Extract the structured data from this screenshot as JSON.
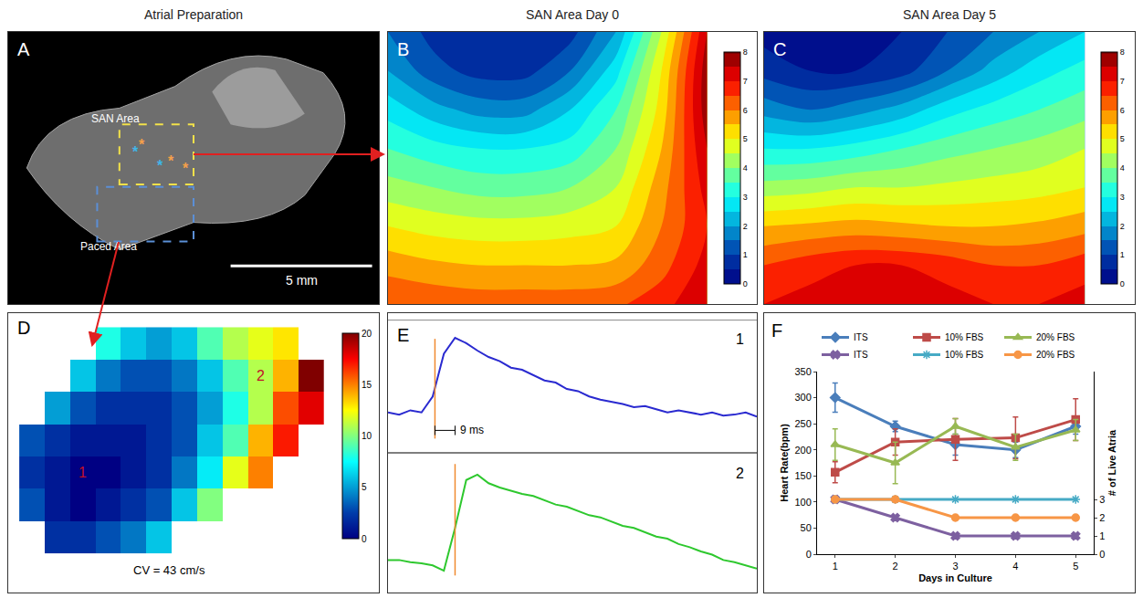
{
  "column_titles": [
    "Atrial Preparation",
    "SAN Area Day 0",
    "SAN Area Day 5"
  ],
  "chart_data": [
    {
      "type": "image",
      "panel": "A",
      "labels": {
        "san": "SAN Area",
        "paced": "Paced Area"
      },
      "asterisks": {
        "text": "*",
        "colors": [
          "#3fb6e8",
          "#f5a04a",
          "#3fb6e8",
          "#f5a04a",
          "#f5a04a"
        ]
      },
      "scale_bar": {
        "label": "5 mm",
        "length": 5
      },
      "xlim": [
        0,
        13.1
      ],
      "ylim": [
        0,
        9.9
      ],
      "tick_labels": false
    },
    {
      "type": "contour",
      "panel": "B",
      "z": [
        [
          1.5,
          0.8,
          0.5,
          0.5,
          0.8,
          2.0,
          4.5,
          7.5
        ],
        [
          2.0,
          1.2,
          0.8,
          0.8,
          1.5,
          2.8,
          5.0,
          7.8
        ],
        [
          2.8,
          2.2,
          1.8,
          1.8,
          2.5,
          3.5,
          5.2,
          7.8
        ],
        [
          3.5,
          3.2,
          3.0,
          3.0,
          3.2,
          4.0,
          5.5,
          7.5
        ],
        [
          4.2,
          4.0,
          3.8,
          3.8,
          4.0,
          4.5,
          5.8,
          7.2
        ],
        [
          5.0,
          4.8,
          4.7,
          4.7,
          4.8,
          5.0,
          6.0,
          7.0
        ],
        [
          5.8,
          5.6,
          5.5,
          5.5,
          5.5,
          5.6,
          6.3,
          7.2
        ],
        [
          6.5,
          6.4,
          6.3,
          6.3,
          6.3,
          6.4,
          6.8,
          7.5
        ]
      ],
      "zlim": [
        0,
        8
      ],
      "colorbar_ticks": [
        0,
        1,
        2,
        3,
        4,
        5,
        6,
        7,
        8
      ],
      "tick_labels": false
    },
    {
      "type": "contour",
      "panel": "C",
      "z": [
        [
          0.3,
          0.3,
          0.3,
          0.5,
          1.0,
          1.5,
          2.0,
          2.5
        ],
        [
          0.8,
          0.5,
          0.5,
          0.8,
          1.5,
          2.2,
          2.8,
          3.2
        ],
        [
          1.8,
          1.5,
          1.8,
          2.2,
          2.8,
          3.2,
          3.5,
          3.8
        ],
        [
          3.0,
          3.0,
          3.2,
          3.5,
          3.8,
          4.0,
          4.2,
          4.5
        ],
        [
          4.2,
          4.3,
          4.5,
          4.5,
          4.6,
          4.7,
          4.8,
          5.0
        ],
        [
          5.5,
          5.6,
          5.7,
          5.6,
          5.5,
          5.5,
          5.6,
          5.8
        ],
        [
          6.5,
          6.8,
          7.0,
          7.0,
          6.8,
          6.5,
          6.5,
          6.8
        ],
        [
          7.0,
          7.2,
          7.4,
          7.4,
          7.2,
          7.0,
          7.0,
          7.2
        ]
      ],
      "zlim": [
        0,
        8
      ],
      "colorbar_ticks": [
        0,
        1,
        2,
        3,
        4,
        5,
        6,
        7,
        8
      ],
      "tick_labels": false
    },
    {
      "type": "heatmap",
      "panel": "D",
      "z": [
        [
          null,
          null,
          null,
          8,
          6,
          5,
          6,
          9,
          11,
          12,
          13,
          null
        ],
        [
          null,
          null,
          6,
          4,
          3,
          3,
          4,
          6,
          9,
          11,
          14,
          20
        ],
        [
          null,
          5,
          3,
          2,
          2,
          2,
          3,
          5,
          8,
          11,
          16,
          18
        ],
        [
          3,
          2,
          1,
          1,
          1,
          2,
          3,
          6,
          9,
          14,
          17,
          null
        ],
        [
          2,
          1,
          0,
          0,
          1,
          2,
          4,
          7,
          12,
          15,
          null,
          null
        ],
        [
          3,
          1,
          0,
          1,
          2,
          3,
          6,
          10,
          null,
          null,
          null,
          null
        ],
        [
          null,
          2,
          2,
          3,
          4,
          6,
          null,
          null,
          null,
          null,
          null,
          null
        ]
      ],
      "zlim": [
        0,
        20
      ],
      "colorbar_ticks": [
        0,
        5,
        10,
        15,
        20
      ],
      "points": [
        {
          "label": "1",
          "x": 2,
          "y": 4
        },
        {
          "label": "2",
          "x": 9,
          "y": 1
        }
      ],
      "cv_label": "CV = 43 cm/s",
      "tick_labels": false
    },
    {
      "type": "line",
      "panel": "E",
      "x": [
        0,
        5,
        10,
        15,
        20,
        25,
        30,
        35,
        40,
        45,
        50,
        55,
        60,
        65,
        70,
        75,
        80,
        85,
        90,
        95,
        100,
        105,
        110,
        115,
        120,
        125,
        130,
        135,
        140,
        145,
        150,
        155,
        160,
        165
      ],
      "series": [
        {
          "name": "1",
          "color": "#2a2ad0",
          "values": [
            0.3,
            0.28,
            0.32,
            0.3,
            0.45,
            0.85,
            1.0,
            0.95,
            0.88,
            0.82,
            0.78,
            0.72,
            0.7,
            0.65,
            0.6,
            0.58,
            0.52,
            0.5,
            0.45,
            0.42,
            0.4,
            0.38,
            0.35,
            0.36,
            0.33,
            0.3,
            0.32,
            0.3,
            0.28,
            0.3,
            0.27,
            0.28,
            0.3,
            0.26
          ]
        },
        {
          "name": "2",
          "color": "#2ec82e",
          "values": [
            0.2,
            0.2,
            0.18,
            0.17,
            0.15,
            0.1,
            0.5,
            0.95,
            1.0,
            0.92,
            0.88,
            0.85,
            0.82,
            0.8,
            0.76,
            0.72,
            0.7,
            0.66,
            0.62,
            0.6,
            0.56,
            0.52,
            0.5,
            0.46,
            0.42,
            0.4,
            0.35,
            0.32,
            0.28,
            0.25,
            0.2,
            0.18,
            0.15,
            0.12
          ]
        }
      ],
      "activation": [
        21,
        30
      ],
      "activation_color": "#f08a30",
      "interval_label": "9 ms",
      "xlim": [
        0,
        165
      ],
      "ylim": [
        0,
        1.1
      ],
      "tick_labels": false
    },
    {
      "type": "line",
      "panel": "F",
      "x": [
        1,
        2,
        3,
        4,
        5
      ],
      "xlim": [
        0.7,
        5.3
      ],
      "xticks": [
        1,
        2,
        3,
        4,
        5
      ],
      "ylim": [
        0,
        350
      ],
      "yticks": [
        0,
        50,
        100,
        150,
        200,
        250,
        300,
        350
      ],
      "y2lim": [
        0,
        10
      ],
      "y2ticks": [
        0,
        1,
        2,
        3
      ],
      "x_label": "Days in Culture",
      "y_label": "Heart Rate(bpm)",
      "y2_label": "# of Live Atria",
      "legend": "top",
      "grid": false,
      "series": [
        {
          "name": "ITS",
          "color": "#4a7ebb",
          "marker": "diamond",
          "values": [
            300,
            245,
            210,
            200,
            245
          ],
          "errors": [
            28,
            10,
            20,
            15,
            15
          ]
        },
        {
          "name": "10% FBS",
          "color": "#be4b48",
          "marker": "square",
          "values": [
            157,
            215,
            220,
            223,
            258
          ],
          "errors": [
            20,
            25,
            40,
            40,
            40
          ]
        },
        {
          "name": "20% FBS",
          "color": "#98b954",
          "marker": "triangle-up",
          "values": [
            210,
            175,
            245,
            205,
            238
          ],
          "errors": [
            30,
            40,
            15,
            25,
            20
          ]
        },
        {
          "name": "ITS",
          "color": "#7d60a0",
          "marker": "x",
          "values": [
            3,
            2,
            1,
            1,
            1
          ],
          "axis": "y2"
        },
        {
          "name": "10% FBS",
          "color": "#46aac5",
          "marker": "asterisk",
          "values": [
            3,
            3,
            3,
            3,
            3
          ],
          "axis": "y2"
        },
        {
          "name": "20% FBS",
          "color": "#f79646",
          "marker": "circle",
          "values": [
            3,
            3,
            2,
            2,
            2
          ],
          "axis": "y2"
        }
      ]
    }
  ]
}
